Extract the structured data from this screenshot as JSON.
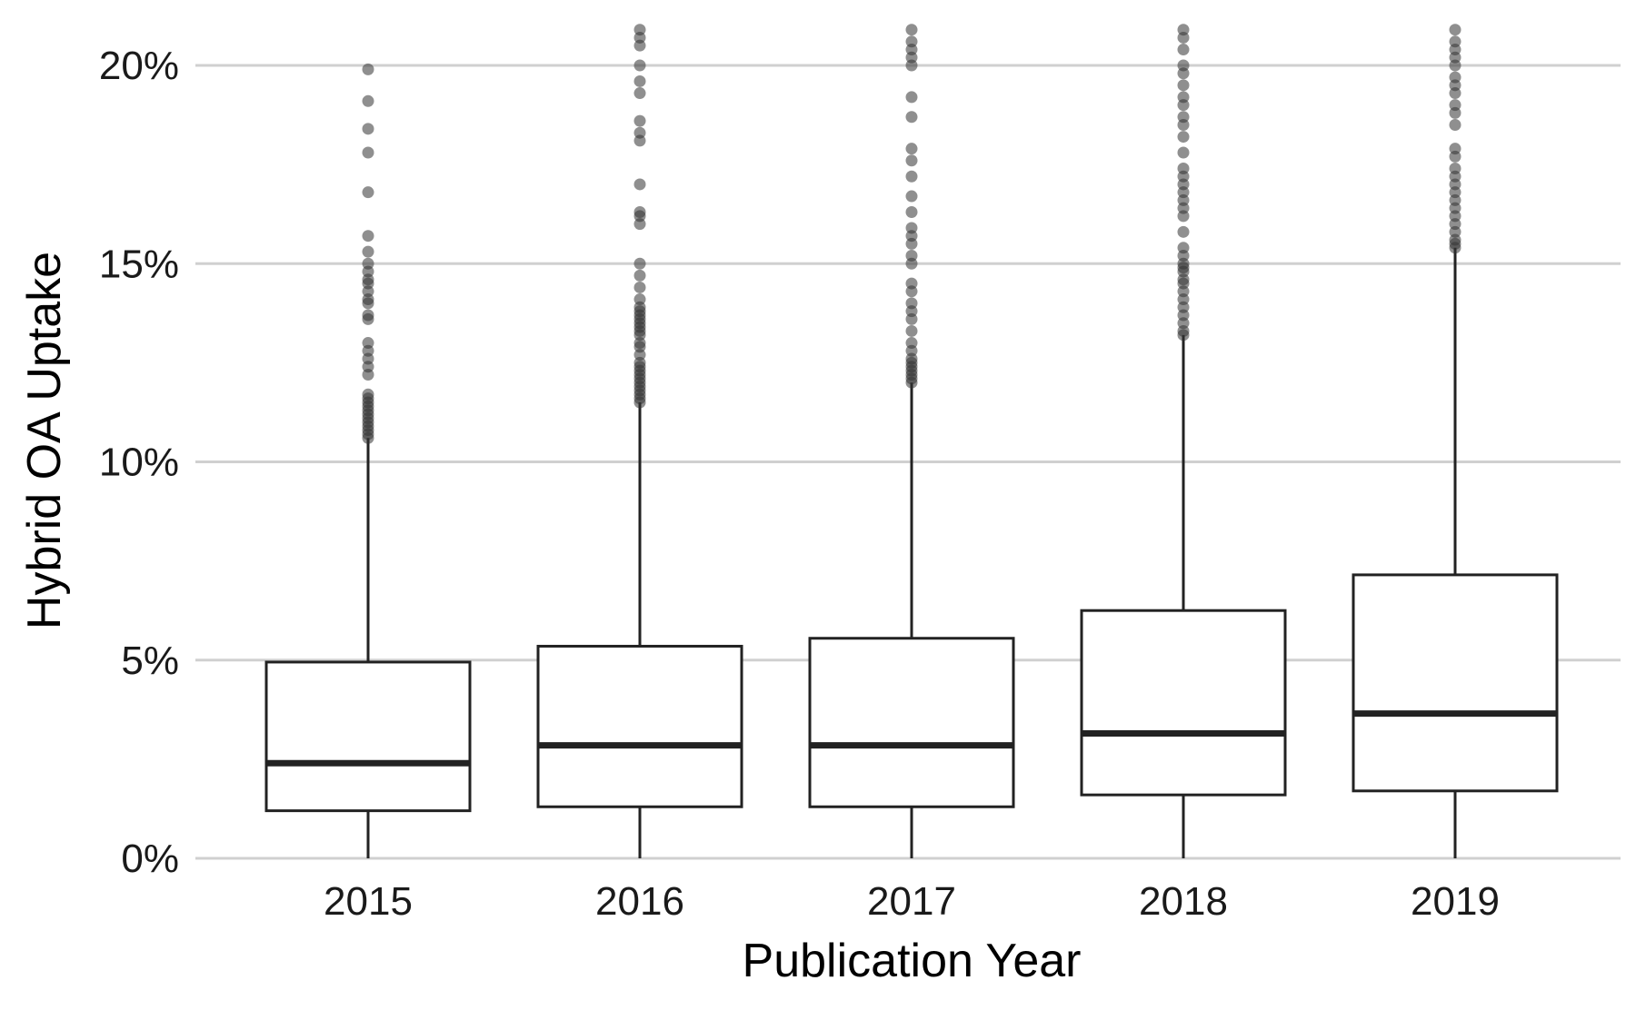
{
  "chart_data": {
    "type": "box",
    "title": "",
    "xlabel": "Publication Year",
    "ylabel": "Hybrid OA Uptake",
    "categories": [
      "2015",
      "2016",
      "2017",
      "2018",
      "2019"
    ],
    "yticks": [
      {
        "value": 0,
        "label": "0%"
      },
      {
        "value": 5,
        "label": "5%"
      },
      {
        "value": 10,
        "label": "10%"
      },
      {
        "value": 15,
        "label": "15%"
      },
      {
        "value": 20,
        "label": "20%"
      }
    ],
    "ylim": [
      0,
      21
    ],
    "grid": "horizontal",
    "boxes": [
      {
        "year": "2015",
        "q1": 1.2,
        "median": 2.4,
        "q3": 4.95,
        "whisker_low": 0,
        "whisker_high": 10.6,
        "outliers": [
          10.6,
          10.7,
          10.8,
          10.9,
          11.0,
          11.1,
          11.2,
          11.3,
          11.4,
          11.5,
          11.6,
          11.7,
          12.2,
          12.4,
          12.6,
          12.8,
          13.0,
          13.6,
          13.7,
          14.0,
          14.1,
          14.3,
          14.5,
          14.6,
          14.8,
          15.0,
          15.3,
          15.7,
          16.8,
          17.8,
          18.4,
          19.1,
          19.9
        ]
      },
      {
        "year": "2016",
        "q1": 1.3,
        "median": 2.85,
        "q3": 5.35,
        "whisker_low": 0,
        "whisker_high": 11.5,
        "outliers": [
          11.5,
          11.6,
          11.7,
          11.8,
          11.9,
          12.0,
          12.1,
          12.2,
          12.3,
          12.4,
          12.5,
          12.7,
          12.9,
          13.0,
          13.2,
          13.3,
          13.4,
          13.5,
          13.6,
          13.7,
          13.8,
          13.9,
          14.1,
          14.4,
          14.7,
          15.0,
          16.0,
          16.2,
          16.3,
          17.0,
          18.1,
          18.3,
          18.6,
          19.3,
          19.6,
          20.0,
          20.5,
          20.7,
          20.9
        ]
      },
      {
        "year": "2017",
        "q1": 1.3,
        "median": 2.85,
        "q3": 5.55,
        "whisker_low": 0,
        "whisker_high": 12.0,
        "outliers": [
          12.0,
          12.1,
          12.2,
          12.3,
          12.4,
          12.5,
          12.6,
          12.8,
          13.0,
          13.3,
          13.6,
          13.8,
          14.0,
          14.3,
          14.5,
          15.0,
          15.2,
          15.5,
          15.7,
          15.9,
          16.3,
          16.7,
          17.2,
          17.6,
          17.9,
          18.7,
          19.2,
          20.0,
          20.2,
          20.4,
          20.6,
          20.9
        ]
      },
      {
        "year": "2018",
        "q1": 1.6,
        "median": 3.15,
        "q3": 6.25,
        "whisker_low": 0,
        "whisker_high": 13.2,
        "outliers": [
          13.2,
          13.3,
          13.5,
          13.7,
          13.9,
          14.1,
          14.3,
          14.5,
          14.6,
          14.8,
          14.9,
          15.0,
          15.2,
          15.4,
          15.8,
          16.2,
          16.4,
          16.6,
          16.8,
          17.0,
          17.2,
          17.4,
          17.8,
          18.2,
          18.5,
          18.7,
          19.0,
          19.2,
          19.5,
          19.8,
          20.0,
          20.4,
          20.7,
          20.9
        ]
      },
      {
        "year": "2019",
        "q1": 1.7,
        "median": 3.65,
        "q3": 7.15,
        "whisker_low": 0,
        "whisker_high": 15.4,
        "outliers": [
          15.4,
          15.5,
          15.6,
          15.8,
          16.0,
          16.2,
          16.4,
          16.6,
          16.8,
          17.0,
          17.2,
          17.4,
          17.7,
          17.9,
          18.5,
          18.8,
          19.0,
          19.3,
          19.5,
          19.7,
          20.0,
          20.2,
          20.4,
          20.6,
          20.9
        ]
      }
    ],
    "colors": {
      "grid": "#d0d0d0",
      "box_stroke": "#222222",
      "outlier": "#333333"
    }
  }
}
